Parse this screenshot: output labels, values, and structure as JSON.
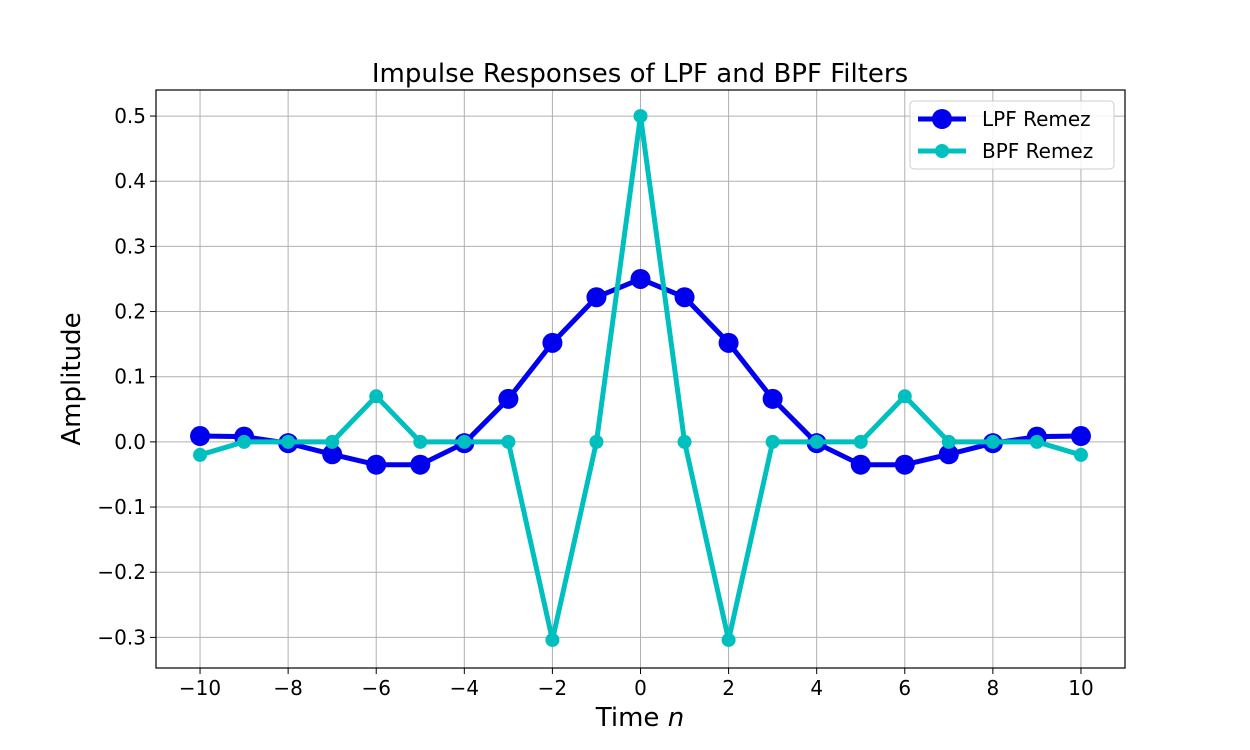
{
  "chart_data": {
    "type": "line",
    "title": "Impulse Responses of LPF and BPF Filters",
    "xlabel": "Time",
    "xlabel_var": "n",
    "ylabel": "Amplitude",
    "xlim": [
      -11,
      11
    ],
    "ylim": [
      -0.347,
      0.54
    ],
    "xticks": [
      -10,
      -8,
      -6,
      -4,
      -2,
      0,
      2,
      4,
      6,
      8,
      10
    ],
    "xtick_labels": [
      "−10",
      "−8",
      "−6",
      "−4",
      "−2",
      "0",
      "2",
      "4",
      "6",
      "8",
      "10"
    ],
    "yticks": [
      -0.3,
      -0.2,
      -0.1,
      0.0,
      0.1,
      0.2,
      0.3,
      0.4,
      0.5
    ],
    "ytick_labels": [
      "−0.3",
      "−0.2",
      "−0.1",
      "0.0",
      "0.1",
      "0.2",
      "0.3",
      "0.4",
      "0.5"
    ],
    "grid": true,
    "legend_position": "top-right",
    "x": [
      -10,
      -9,
      -8,
      -7,
      -6,
      -5,
      -4,
      -3,
      -2,
      -1,
      0,
      1,
      2,
      3,
      4,
      5,
      6,
      7,
      8,
      9,
      10
    ],
    "series": [
      {
        "name": "LPF Remez",
        "color": "#0000ee",
        "marker": "large-circle",
        "values": [
          0.009,
          0.008,
          -0.002,
          -0.019,
          -0.035,
          -0.035,
          -0.002,
          0.066,
          0.152,
          0.222,
          0.25,
          0.222,
          0.152,
          0.066,
          -0.002,
          -0.035,
          -0.035,
          -0.019,
          -0.002,
          0.008,
          0.009
        ]
      },
      {
        "name": "BPF Remez",
        "color": "#00bfbf",
        "marker": "small-circle",
        "values": [
          -0.02,
          0.0,
          0.0,
          0.0,
          0.07,
          0.0,
          0.0,
          0.0,
          -0.304,
          0.0,
          0.5,
          0.0,
          -0.304,
          0.0,
          0.0,
          0.0,
          0.07,
          0.0,
          0.0,
          0.0,
          -0.02
        ]
      }
    ]
  }
}
